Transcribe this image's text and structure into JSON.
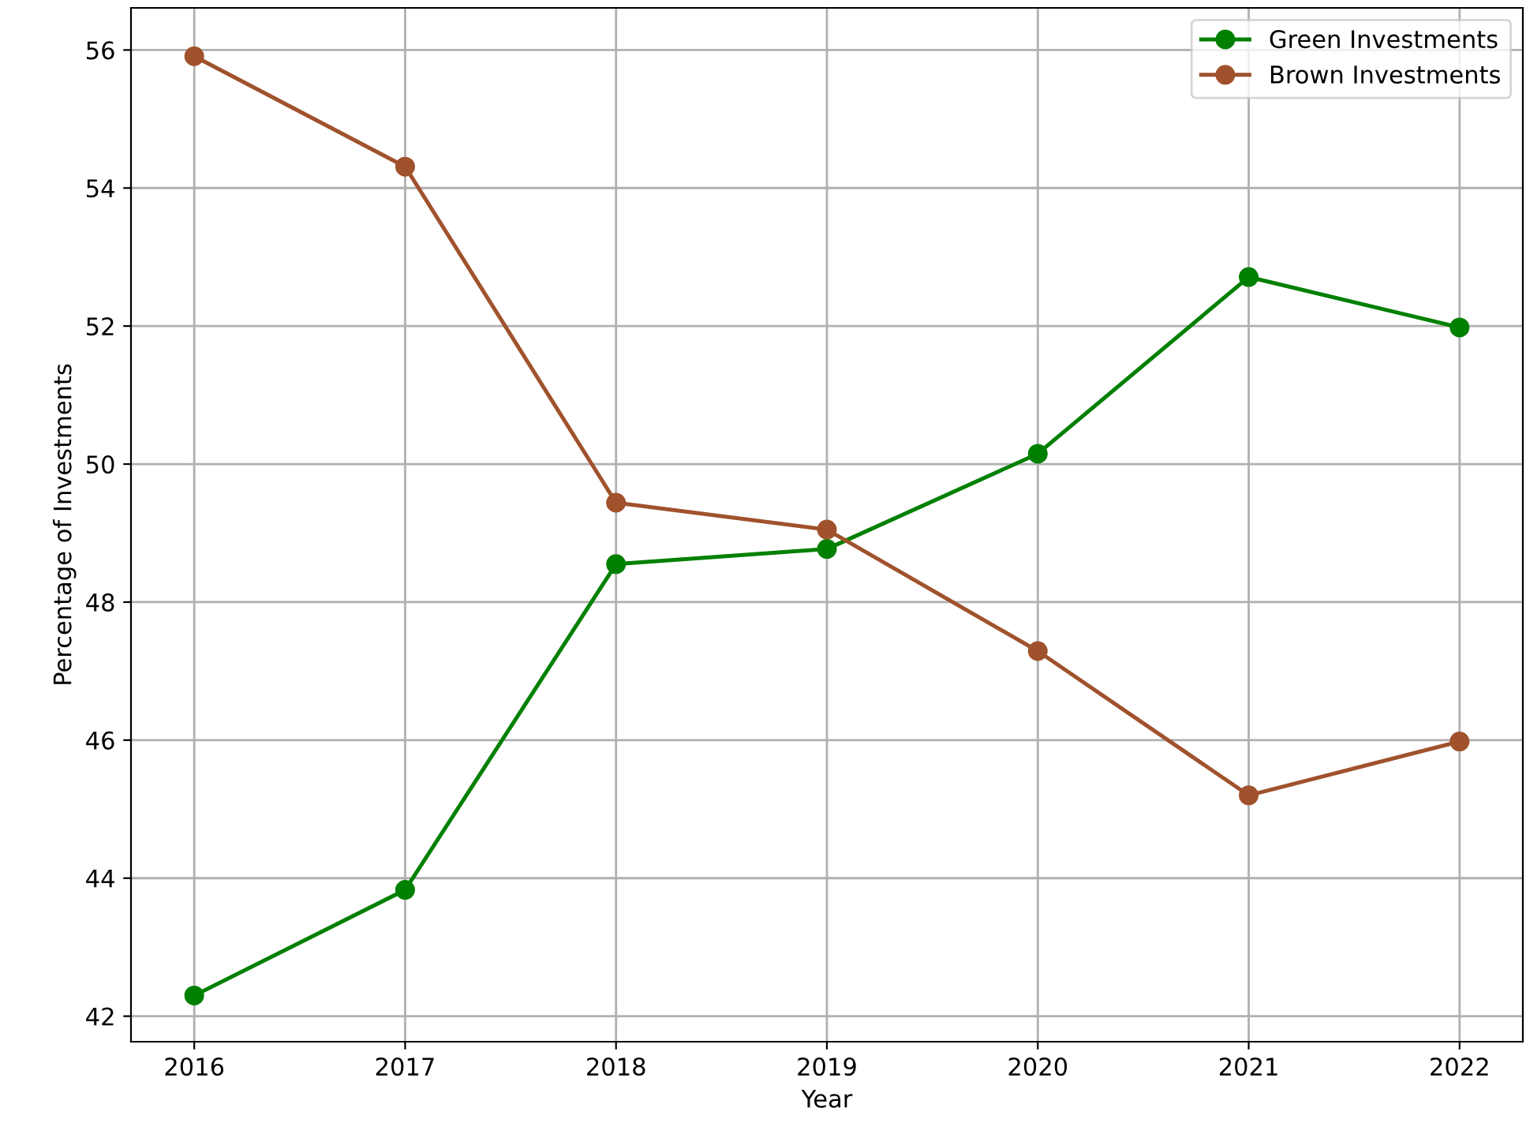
{
  "chart_data": {
    "type": "line",
    "xlabel": "Year",
    "ylabel": "Percentage of Investments",
    "x": [
      2016,
      2017,
      2018,
      2019,
      2020,
      2021,
      2022
    ],
    "series": [
      {
        "name": "Green Investments",
        "color": "#008000",
        "values": [
          42.3,
          43.83,
          48.55,
          48.77,
          50.15,
          52.71,
          51.98
        ]
      },
      {
        "name": "Brown Investments",
        "color": "#a0522d",
        "values": [
          55.91,
          54.31,
          49.44,
          49.05,
          47.29,
          45.2,
          45.98
        ]
      }
    ],
    "xlim": [
      2015.7,
      2022.3
    ],
    "ylim": [
      41.63,
      56.61
    ],
    "xticks": [
      2016,
      2017,
      2018,
      2019,
      2020,
      2021,
      2022
    ],
    "yticks": [
      42,
      44,
      46,
      48,
      50,
      52,
      54,
      56
    ],
    "grid": true,
    "legend": "top right",
    "marker": "circle",
    "line_style": "solid"
  }
}
